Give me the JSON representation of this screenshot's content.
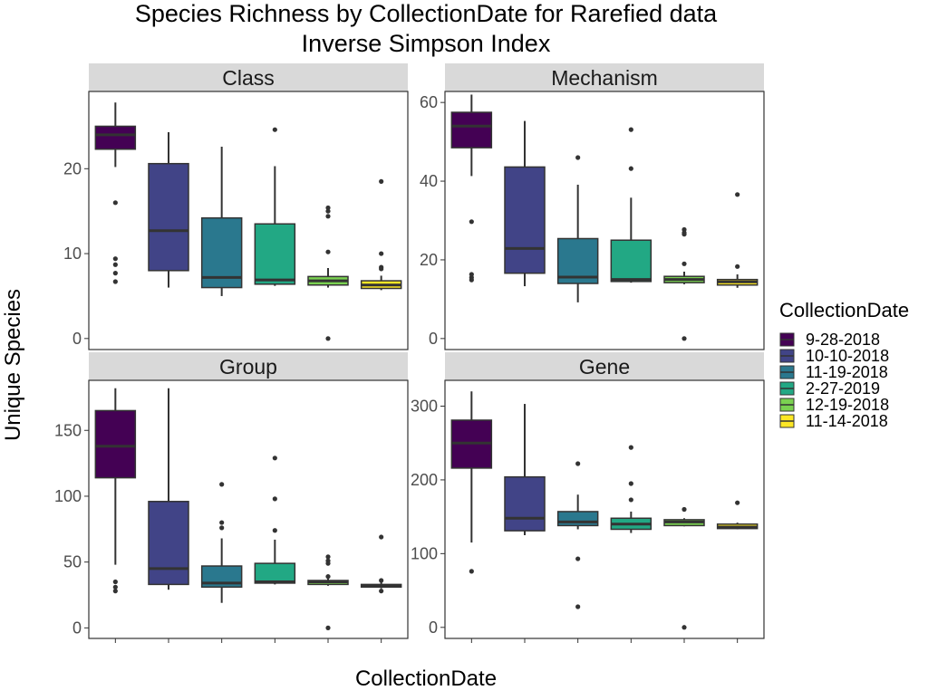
{
  "colors": {
    "box_fills": [
      "#440154",
      "#414487",
      "#2A788E",
      "#22A884",
      "#7AD151",
      "#FDE725"
    ],
    "strip": "#D9D9D9",
    "panel_border": "#333333",
    "point": "#333333"
  },
  "chart_data": {
    "type": "box",
    "title_lines": [
      "Species Richness by CollectionDate for Rarefied data",
      "Inverse Simpson Index"
    ],
    "xlabel": "CollectionDate",
    "ylabel": "Unique Species",
    "legend": {
      "title": "CollectionDate",
      "entries": [
        "9-28-2018",
        "10-10-2018",
        "11-19-2018",
        "2-27-2019",
        "12-19-2018",
        "11-14-2018"
      ],
      "position": "right"
    },
    "grid": false,
    "categories": [
      "9-28-2018",
      "10-10-2018",
      "11-19-2018",
      "2-27-2019",
      "12-19-2018",
      "11-14-2018"
    ],
    "panels": [
      {
        "label": "Class",
        "ylim": [
          -1.3,
          29.1
        ],
        "yticks": [
          0,
          10,
          20
        ],
        "boxes": [
          {
            "q1": 22.3,
            "median": 24.0,
            "q3": 25.0,
            "lo": 20.2,
            "hi": 27.8,
            "outliers": [
              16.0,
              9.4,
              8.7,
              7.7,
              6.7
            ]
          },
          {
            "q1": 8.0,
            "median": 12.7,
            "q3": 20.6,
            "lo": 6.0,
            "hi": 24.3,
            "outliers": []
          },
          {
            "q1": 6.0,
            "median": 7.2,
            "q3": 14.2,
            "lo": 5.0,
            "hi": 22.6,
            "outliers": []
          },
          {
            "q1": 6.4,
            "median": 6.9,
            "q3": 13.5,
            "lo": 6.2,
            "hi": 20.3,
            "outliers": [
              24.6
            ]
          },
          {
            "q1": 6.3,
            "median": 6.8,
            "q3": 7.3,
            "lo": 6.0,
            "hi": 8.3,
            "outliers": [
              15.4,
              15.0,
              14.4,
              10.2,
              0.0
            ]
          },
          {
            "q1": 5.9,
            "median": 6.3,
            "q3": 6.8,
            "lo": 5.7,
            "hi": 7.4,
            "outliers": [
              18.5,
              10.0,
              8.4,
              8.2
            ]
          }
        ]
      },
      {
        "label": "Mechanism",
        "ylim": [
          -2.8,
          62.8
        ],
        "yticks": [
          0,
          20,
          40,
          60
        ],
        "boxes": [
          {
            "q1": 48.5,
            "median": 54.0,
            "q3": 57.5,
            "lo": 41.3,
            "hi": 62.0,
            "outliers": [
              29.7,
              16.3,
              15.5,
              14.9
            ]
          },
          {
            "q1": 16.6,
            "median": 22.9,
            "q3": 43.6,
            "lo": 13.3,
            "hi": 55.3,
            "outliers": []
          },
          {
            "q1": 14.0,
            "median": 15.6,
            "q3": 25.4,
            "lo": 9.2,
            "hi": 39.1,
            "outliers": [
              46.0
            ]
          },
          {
            "q1": 14.5,
            "median": 15.0,
            "q3": 25.0,
            "lo": 14.2,
            "hi": 35.8,
            "outliers": [
              53.1,
              43.2
            ]
          },
          {
            "q1": 14.2,
            "median": 15.0,
            "q3": 15.8,
            "lo": 13.8,
            "hi": 17.0,
            "outliers": [
              27.7,
              26.9,
              26.5,
              19.0,
              0.0
            ]
          },
          {
            "q1": 13.6,
            "median": 14.4,
            "q3": 15.0,
            "lo": 12.9,
            "hi": 16.3,
            "outliers": [
              36.6,
              18.3
            ]
          }
        ]
      },
      {
        "label": "Group",
        "ylim": [
          -8.0,
          188.0
        ],
        "yticks": [
          0,
          50,
          100,
          150
        ],
        "boxes": [
          {
            "q1": 114,
            "median": 138,
            "q3": 165,
            "lo": 48,
            "hi": 182,
            "outliers": [
              35,
              31,
              28
            ]
          },
          {
            "q1": 33,
            "median": 45,
            "q3": 96,
            "lo": 29,
            "hi": 182,
            "outliers": []
          },
          {
            "q1": 31,
            "median": 34,
            "q3": 47,
            "lo": 19,
            "hi": 68,
            "outliers": [
              109,
              80,
              76
            ]
          },
          {
            "q1": 34,
            "median": 35,
            "q3": 49,
            "lo": 33,
            "hi": 67,
            "outliers": [
              129,
              98,
              74
            ]
          },
          {
            "q1": 33,
            "median": 35,
            "q3": 36,
            "lo": 32,
            "hi": 38,
            "outliers": [
              54,
              51,
              49,
              39,
              0
            ]
          },
          {
            "q1": 31,
            "median": 32,
            "q3": 33,
            "lo": 30,
            "hi": 35,
            "outliers": [
              69,
              36,
              28
            ]
          }
        ]
      },
      {
        "label": "Gene",
        "ylim": [
          -15,
          335
        ],
        "yticks": [
          0,
          100,
          200,
          300
        ],
        "boxes": [
          {
            "q1": 216,
            "median": 250,
            "q3": 281,
            "lo": 115,
            "hi": 320,
            "outliers": [
              76
            ]
          },
          {
            "q1": 131,
            "median": 148,
            "q3": 204,
            "lo": 125,
            "hi": 303,
            "outliers": []
          },
          {
            "q1": 138,
            "median": 143,
            "q3": 157,
            "lo": 133,
            "hi": 180,
            "outliers": [
              222,
              93,
              28
            ]
          },
          {
            "q1": 133,
            "median": 140,
            "q3": 148,
            "lo": 128,
            "hi": 157,
            "outliers": [
              244,
              195,
              173
            ]
          },
          {
            "q1": 138,
            "median": 143,
            "q3": 146,
            "lo": 137,
            "hi": 148,
            "outliers": [
              160,
              0
            ]
          },
          {
            "q1": 134,
            "median": 136,
            "q3": 140,
            "lo": 133,
            "hi": 142,
            "outliers": [
              169
            ]
          }
        ]
      }
    ]
  }
}
